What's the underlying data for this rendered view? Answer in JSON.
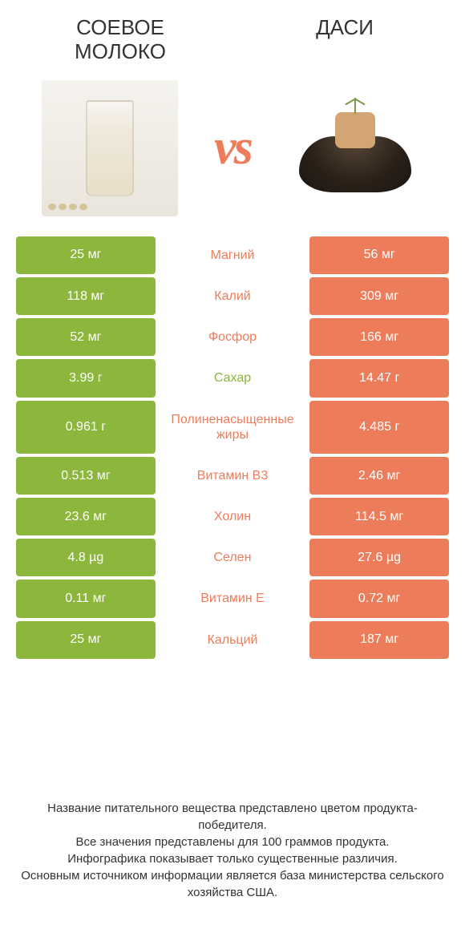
{
  "header": {
    "left_title": "СОЕВОЕ МОЛОКО",
    "right_title": "ДАСИ",
    "vs_label": "vs"
  },
  "colors": {
    "left_cell": "#8cb63c",
    "right_cell": "#ed7d5a",
    "label_left": "#8cb63c",
    "label_right": "#ed7d5a",
    "bg": "#ffffff",
    "text": "#333333",
    "cell_text": "#ffffff"
  },
  "rows": [
    {
      "left": "25 мг",
      "label": "Магний",
      "right": "56 мг",
      "winner": "right"
    },
    {
      "left": "118 мг",
      "label": "Калий",
      "right": "309 мг",
      "winner": "right"
    },
    {
      "left": "52 мг",
      "label": "Фосфор",
      "right": "166 мг",
      "winner": "right"
    },
    {
      "left": "3.99 г",
      "label": "Сахар",
      "right": "14.47 г",
      "winner": "left"
    },
    {
      "left": "0.961 г",
      "label": "Полиненасыщенные жиры",
      "right": "4.485 г",
      "winner": "right"
    },
    {
      "left": "0.513 мг",
      "label": "Витамин B3",
      "right": "2.46 мг",
      "winner": "right"
    },
    {
      "left": "23.6 мг",
      "label": "Холин",
      "right": "114.5 мг",
      "winner": "right"
    },
    {
      "left": "4.8 µg",
      "label": "Селен",
      "right": "27.6 µg",
      "winner": "right"
    },
    {
      "left": "0.11 мг",
      "label": "Витамин E",
      "right": "0.72 мг",
      "winner": "right"
    },
    {
      "left": "25 мг",
      "label": "Кальций",
      "right": "187 мг",
      "winner": "right"
    }
  ],
  "footer": {
    "line1": "Название питательного вещества представлено цветом продукта-победителя.",
    "line2": "Все значения представлены для 100 граммов продукта.",
    "line3": "Инфографика показывает только существенные различия.",
    "line4": "Основным источником информации является база министерства сельского хозяйства США."
  },
  "typography": {
    "title_fontsize": 26,
    "cell_fontsize": 16,
    "footer_fontsize": 15,
    "vs_fontsize": 62
  }
}
